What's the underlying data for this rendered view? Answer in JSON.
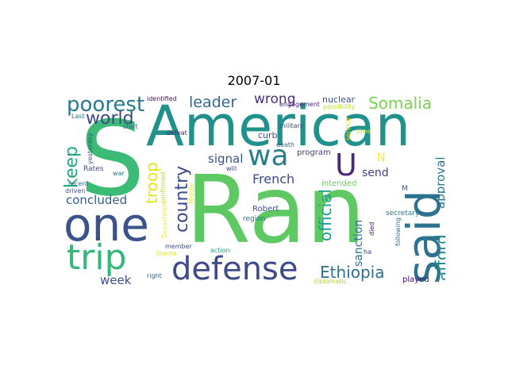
{
  "title": "2007-01",
  "words": {
    "ran": {
      "text": "Ran",
      "color": "#5ec962"
    },
    "american": {
      "text": "American",
      "color": "#21918c"
    },
    "s": {
      "text": "S",
      "color": "#3bbb75"
    },
    "said": {
      "text": "said",
      "color": "#2c728e"
    },
    "one": {
      "text": "one",
      "color": "#3b528b"
    },
    "trip": {
      "text": "trip",
      "color": "#35b779"
    },
    "defense": {
      "text": "defense",
      "color": "#3e4a89"
    },
    "wa": {
      "text": "wa",
      "color": "#287d8e"
    },
    "u": {
      "text": "U",
      "color": "#482878"
    },
    "poorest": {
      "text": "poorest",
      "color": "#2a788e"
    },
    "somalia": {
      "text": "Somalia",
      "color": "#7ad151"
    },
    "leader": {
      "text": "leader",
      "color": "#31688e"
    },
    "world": {
      "text": "world",
      "color": "#404588"
    },
    "country": {
      "text": "country",
      "color": "#3e4989"
    },
    "keep": {
      "text": "keep",
      "color": "#22a785"
    },
    "troop": {
      "text": "troop",
      "color": "#e5e419"
    },
    "signal": {
      "text": "signal",
      "color": "#3b528b"
    },
    "wrong": {
      "text": "wrong",
      "color": "#46327e"
    },
    "french": {
      "text": "French",
      "color": "#3e4989"
    },
    "official": {
      "text": "official",
      "color": "#1f9e89"
    },
    "ethiopia": {
      "text": "Ethiopia",
      "color": "#2d708e"
    },
    "afford": {
      "text": "afford",
      "color": "#26828e"
    },
    "approval": {
      "text": "approval",
      "color": "#2a768e"
    },
    "sanction": {
      "text": "sanction",
      "color": "#2e6f8e"
    },
    "send": {
      "text": "send",
      "color": "#433e85"
    },
    "n": {
      "text": "N",
      "color": "#fde725"
    },
    "concluded": {
      "text": "concluded",
      "color": "#355f8d"
    },
    "week": {
      "text": "week",
      "color": "#3e4c8a"
    },
    "nuclear": {
      "text": "nuclear",
      "color": "#3b528b"
    },
    "curb": {
      "text": "curb",
      "color": "#3a548c"
    },
    "program": {
      "text": "program",
      "color": "#433d84"
    },
    "intended": {
      "text": "intended",
      "color": "#6ccd5a"
    },
    "robert": {
      "text": "Robert",
      "color": "#3d4d8a"
    },
    "region": {
      "text": "region",
      "color": "#2c718e"
    },
    "played": {
      "text": "played",
      "color": "#3b0f70"
    },
    "secretary": {
      "text": "secretary",
      "color": "#2a788e"
    },
    "following": {
      "text": "following",
      "color": "#2d718e"
    },
    "died": {
      "text": "died",
      "color": "#481f70"
    },
    "ha": {
      "text": "ha",
      "color": "#443983"
    },
    "diplomatic": {
      "text": "diplomatic",
      "color": "#addc30"
    },
    "m": {
      "text": "M",
      "color": "#3b528b"
    },
    "identified": {
      "text": "identified",
      "color": "#471063"
    },
    "engagement": {
      "text": "engagement",
      "color": "#482173"
    },
    "possibility": {
      "text": "possibility",
      "color": "#bddf26"
    },
    "military": {
      "text": "military",
      "color": "#3e4a89"
    },
    "service": {
      "text": "service",
      "color": "#d2e21b"
    },
    "time": {
      "text": "time",
      "color": "#d8e219"
    },
    "death": {
      "text": "death",
      "color": "#31688e"
    },
    "last": {
      "text": "Last",
      "color": "#2d708e"
    },
    "yesterday": {
      "text": "yesterday",
      "color": "#3b528b"
    },
    "start": {
      "text": "start",
      "color": "#31688e"
    },
    "defeat": {
      "text": "defeat",
      "color": "#482878"
    },
    "will": {
      "text": "will",
      "color": "#414487"
    },
    "rates": {
      "text": "Rates",
      "color": "#3e4989"
    },
    "war": {
      "text": "war",
      "color": "#2c728e"
    },
    "confirmed": {
      "text": "confirmed",
      "color": "#b5de2b"
    },
    "middle": {
      "text": "Middle",
      "color": "#f1e51d"
    },
    "driven": {
      "text": "driven",
      "color": "#3b528b"
    },
    "recent": {
      "text": "recent",
      "color": "#2a788e"
    },
    "theme": {
      "text": "theme",
      "color": "#e2e418"
    },
    "member": {
      "text": "member",
      "color": "#3e4a89"
    },
    "right": {
      "text": "right",
      "color": "#31688e"
    },
    "action": {
      "text": "action",
      "color": "#20a386"
    },
    "department": {
      "text": "Department",
      "color": "#fde725"
    }
  }
}
